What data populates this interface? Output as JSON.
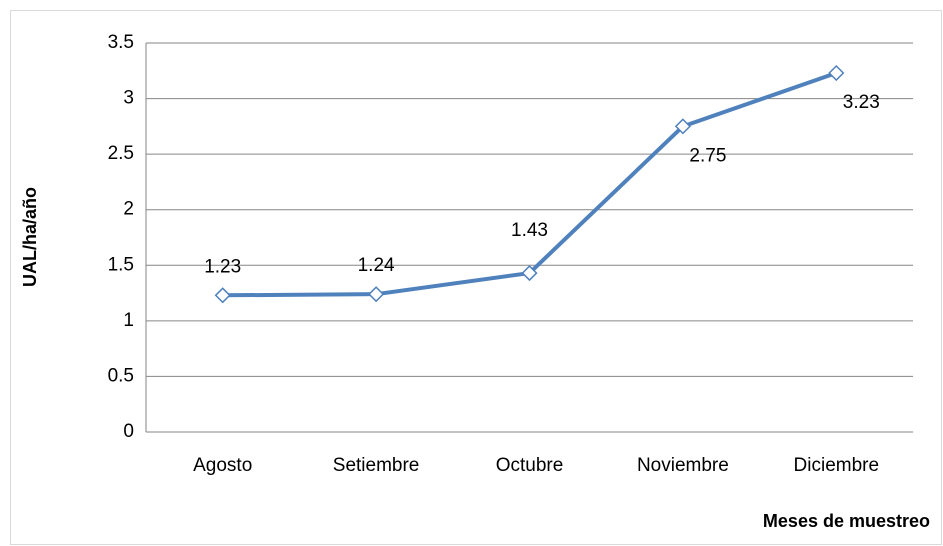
{
  "chart_data": {
    "type": "line",
    "categories": [
      "Agosto",
      "Setiembre",
      "Octubre",
      "Noviembre",
      "Diciembre"
    ],
    "values": [
      1.23,
      1.24,
      1.43,
      2.75,
      3.23
    ],
    "color": "#4f81bd",
    "ylim": [
      0,
      3.5
    ],
    "yticks": [
      0,
      0.5,
      1,
      1.5,
      2,
      2.5,
      3,
      3.5
    ],
    "grid": true,
    "y_label": "UAL/ha/año",
    "x_label": "Meses de muestreo"
  }
}
